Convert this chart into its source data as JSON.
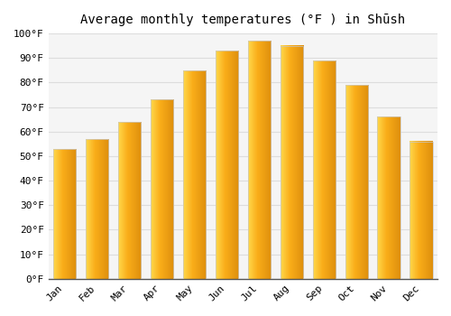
{
  "title": "Average monthly temperatures (°F ) in Shūsh",
  "months": [
    "Jan",
    "Feb",
    "Mar",
    "Apr",
    "May",
    "Jun",
    "Jul",
    "Aug",
    "Sep",
    "Oct",
    "Nov",
    "Dec"
  ],
  "values": [
    53,
    57,
    64,
    73,
    85,
    93,
    97,
    95,
    89,
    79,
    66,
    56
  ],
  "bar_color_main": "#F5A800",
  "bar_color_light": "#FFD966",
  "bar_color_dark": "#E09000",
  "bar_edge_color": "#C8C8C8",
  "background_color": "#FFFFFF",
  "plot_bg_color": "#F5F5F5",
  "grid_color": "#DDDDDD",
  "ylim": [
    0,
    100
  ],
  "ytick_step": 10,
  "title_fontsize": 10,
  "tick_fontsize": 8,
  "font_family": "monospace"
}
